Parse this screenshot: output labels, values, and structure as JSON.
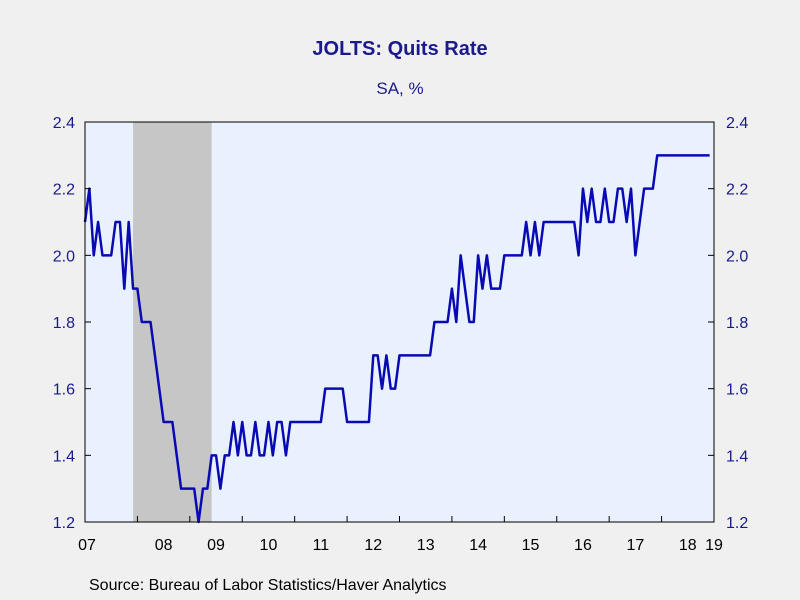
{
  "title": "JOLTS: Quits Rate",
  "subtitle": "SA, %",
  "source": "Source:  Bureau of Labor Statistics/Haver Analytics",
  "colors": {
    "line": "#0a0ab4",
    "plot_background": "#e8f1fd",
    "recession": "#c6c6c6",
    "axis_text": "#1a1a8c",
    "page_background": "#f0f0f0"
  },
  "chart_data": {
    "type": "line",
    "title": "JOLTS: Quits Rate",
    "subtitle": "SA, %",
    "x_axis": {
      "type": "date",
      "range": [
        "2007-01",
        "2019-01"
      ],
      "ticks": [
        {
          "date": "2007-01",
          "label": "07"
        },
        {
          "date": "2008-01",
          "label": "08"
        },
        {
          "date": "2009-01",
          "label": "09"
        },
        {
          "date": "2010-01",
          "label": "10"
        },
        {
          "date": "2011-01",
          "label": "11"
        },
        {
          "date": "2012-01",
          "label": "12"
        },
        {
          "date": "2013-01",
          "label": "13"
        },
        {
          "date": "2014-01",
          "label": "14"
        },
        {
          "date": "2015-01",
          "label": "15"
        },
        {
          "date": "2016-01",
          "label": "16"
        },
        {
          "date": "2017-01",
          "label": "17"
        },
        {
          "date": "2018-01",
          "label": "18"
        },
        {
          "date": "2019-01",
          "label": "19"
        }
      ]
    },
    "y_axis": {
      "range": [
        1.2,
        2.4
      ],
      "ticks": [
        "1.2",
        "1.4",
        "1.6",
        "1.8",
        "2.0",
        "2.2",
        "2.4"
      ],
      "left_and_right": true
    },
    "grid": false,
    "recession_shading": [
      {
        "start": "2007-12",
        "end": "2009-06"
      }
    ],
    "series": [
      {
        "points": [
          [
            "2007-01",
            2.1
          ],
          [
            "2007-02",
            2.2
          ],
          [
            "2007-03",
            2.0
          ],
          [
            "2007-04",
            2.1
          ],
          [
            "2007-05",
            2.0
          ],
          [
            "2007-06",
            2.0
          ],
          [
            "2007-07",
            2.0
          ],
          [
            "2007-08",
            2.1
          ],
          [
            "2007-09",
            2.1
          ],
          [
            "2007-10",
            1.9
          ],
          [
            "2007-11",
            2.1
          ],
          [
            "2007-12",
            1.9
          ],
          [
            "2008-01",
            1.9
          ],
          [
            "2008-02",
            1.8
          ],
          [
            "2008-03",
            1.8
          ],
          [
            "2008-04",
            1.8
          ],
          [
            "2008-05",
            1.7
          ],
          [
            "2008-06",
            1.6
          ],
          [
            "2008-07",
            1.5
          ],
          [
            "2008-08",
            1.5
          ],
          [
            "2008-09",
            1.5
          ],
          [
            "2008-10",
            1.4
          ],
          [
            "2008-11",
            1.3
          ],
          [
            "2008-12",
            1.3
          ],
          [
            "2009-01",
            1.3
          ],
          [
            "2009-02",
            1.3
          ],
          [
            "2009-03",
            1.2
          ],
          [
            "2009-04",
            1.3
          ],
          [
            "2009-05",
            1.3
          ],
          [
            "2009-06",
            1.4
          ],
          [
            "2009-07",
            1.4
          ],
          [
            "2009-08",
            1.3
          ],
          [
            "2009-09",
            1.4
          ],
          [
            "2009-10",
            1.4
          ],
          [
            "2009-11",
            1.5
          ],
          [
            "2009-12",
            1.4
          ],
          [
            "2010-01",
            1.5
          ],
          [
            "2010-02",
            1.4
          ],
          [
            "2010-03",
            1.4
          ],
          [
            "2010-04",
            1.5
          ],
          [
            "2010-05",
            1.4
          ],
          [
            "2010-06",
            1.4
          ],
          [
            "2010-07",
            1.5
          ],
          [
            "2010-08",
            1.4
          ],
          [
            "2010-09",
            1.5
          ],
          [
            "2010-10",
            1.5
          ],
          [
            "2010-11",
            1.4
          ],
          [
            "2010-12",
            1.5
          ],
          [
            "2011-01",
            1.5
          ],
          [
            "2011-02",
            1.5
          ],
          [
            "2011-03",
            1.5
          ],
          [
            "2011-04",
            1.5
          ],
          [
            "2011-05",
            1.5
          ],
          [
            "2011-06",
            1.5
          ],
          [
            "2011-07",
            1.5
          ],
          [
            "2011-08",
            1.6
          ],
          [
            "2011-09",
            1.6
          ],
          [
            "2011-10",
            1.6
          ],
          [
            "2011-11",
            1.6
          ],
          [
            "2011-12",
            1.6
          ],
          [
            "2012-01",
            1.5
          ],
          [
            "2012-02",
            1.5
          ],
          [
            "2012-03",
            1.5
          ],
          [
            "2012-04",
            1.5
          ],
          [
            "2012-05",
            1.5
          ],
          [
            "2012-06",
            1.5
          ],
          [
            "2012-07",
            1.7
          ],
          [
            "2012-08",
            1.7
          ],
          [
            "2012-09",
            1.6
          ],
          [
            "2012-10",
            1.7
          ],
          [
            "2012-11",
            1.6
          ],
          [
            "2012-12",
            1.6
          ],
          [
            "2013-01",
            1.7
          ],
          [
            "2013-02",
            1.7
          ],
          [
            "2013-03",
            1.7
          ],
          [
            "2013-04",
            1.7
          ],
          [
            "2013-05",
            1.7
          ],
          [
            "2013-06",
            1.7
          ],
          [
            "2013-07",
            1.7
          ],
          [
            "2013-08",
            1.7
          ],
          [
            "2013-09",
            1.8
          ],
          [
            "2013-10",
            1.8
          ],
          [
            "2013-11",
            1.8
          ],
          [
            "2013-12",
            1.8
          ],
          [
            "2014-01",
            1.9
          ],
          [
            "2014-02",
            1.8
          ],
          [
            "2014-03",
            2.0
          ],
          [
            "2014-04",
            1.9
          ],
          [
            "2014-05",
            1.8
          ],
          [
            "2014-06",
            1.8
          ],
          [
            "2014-07",
            2.0
          ],
          [
            "2014-08",
            1.9
          ],
          [
            "2014-09",
            2.0
          ],
          [
            "2014-10",
            1.9
          ],
          [
            "2014-11",
            1.9
          ],
          [
            "2014-12",
            1.9
          ],
          [
            "2015-01",
            2.0
          ],
          [
            "2015-02",
            2.0
          ],
          [
            "2015-03",
            2.0
          ],
          [
            "2015-04",
            2.0
          ],
          [
            "2015-05",
            2.0
          ],
          [
            "2015-06",
            2.1
          ],
          [
            "2015-07",
            2.0
          ],
          [
            "2015-08",
            2.1
          ],
          [
            "2015-09",
            2.0
          ],
          [
            "2015-10",
            2.1
          ],
          [
            "2015-11",
            2.1
          ],
          [
            "2015-12",
            2.1
          ],
          [
            "2016-01",
            2.1
          ],
          [
            "2016-02",
            2.1
          ],
          [
            "2016-03",
            2.1
          ],
          [
            "2016-04",
            2.1
          ],
          [
            "2016-05",
            2.1
          ],
          [
            "2016-06",
            2.0
          ],
          [
            "2016-07",
            2.2
          ],
          [
            "2016-08",
            2.1
          ],
          [
            "2016-09",
            2.2
          ],
          [
            "2016-10",
            2.1
          ],
          [
            "2016-11",
            2.1
          ],
          [
            "2016-12",
            2.2
          ],
          [
            "2017-01",
            2.1
          ],
          [
            "2017-02",
            2.1
          ],
          [
            "2017-03",
            2.2
          ],
          [
            "2017-04",
            2.2
          ],
          [
            "2017-05",
            2.1
          ],
          [
            "2017-06",
            2.2
          ],
          [
            "2017-07",
            2.0
          ],
          [
            "2017-08",
            2.1
          ],
          [
            "2017-09",
            2.2
          ],
          [
            "2017-10",
            2.2
          ],
          [
            "2017-11",
            2.2
          ],
          [
            "2017-12",
            2.3
          ],
          [
            "2018-01",
            2.3
          ],
          [
            "2018-02",
            2.3
          ],
          [
            "2018-03",
            2.3
          ],
          [
            "2018-04",
            2.3
          ],
          [
            "2018-05",
            2.3
          ],
          [
            "2018-06",
            2.3
          ],
          [
            "2018-07",
            2.3
          ],
          [
            "2018-08",
            2.3
          ],
          [
            "2018-09",
            2.3
          ],
          [
            "2018-10",
            2.3
          ],
          [
            "2018-11",
            2.3
          ],
          [
            "2018-12",
            2.3
          ]
        ]
      }
    ]
  }
}
